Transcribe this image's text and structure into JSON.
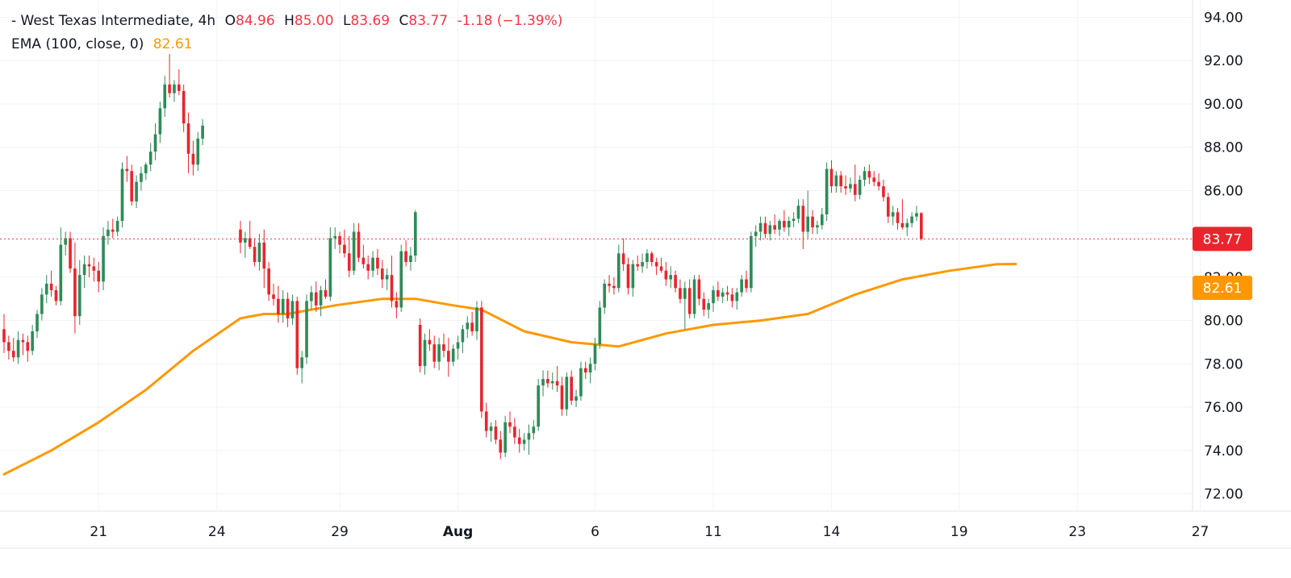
{
  "legend": {
    "symbol_line": "- West Texas Intermediate, 4h",
    "o_label": "O",
    "o_value": "84.96",
    "h_label": "H",
    "h_value": "85.00",
    "l_label": "L",
    "l_value": "83.69",
    "c_label": "C",
    "c_value": "83.77",
    "change": "-1.18 (−1.39%)",
    "ema_label": "EMA (100, close, 0)",
    "ema_value": "82.61"
  },
  "colors": {
    "up": "#26a69a",
    "up_body": "#2e8b57",
    "down": "#e8252d",
    "ema": "#ff9800",
    "grid": "#f0f3fa",
    "price_line": "#f23645"
  },
  "chart_data": {
    "type": "candlestick",
    "title": "West Texas Intermediate, 4h",
    "ylim": [
      71.2,
      94.8
    ],
    "y_ticks": [
      "72.00",
      "74.00",
      "76.00",
      "78.00",
      "80.00",
      "82.00",
      "84.00",
      "86.00",
      "88.00",
      "90.00",
      "92.00",
      "94.00"
    ],
    "x_ticks": [
      {
        "label": "21",
        "index": 20
      },
      {
        "label": "24",
        "index": 45
      },
      {
        "label": "29",
        "index": 71
      },
      {
        "label": "Aug",
        "index": 96
      },
      {
        "label": "6",
        "index": 125
      },
      {
        "label": "11",
        "index": 150
      },
      {
        "label": "14",
        "index": 175
      },
      {
        "label": "19",
        "index": 202
      },
      {
        "label": "23",
        "index": 227
      },
      {
        "label": "27",
        "index": 253
      }
    ],
    "last_price": {
      "value": "83.77",
      "numeric": 83.77
    },
    "ema_last": {
      "value": "82.61",
      "numeric": 82.61
    },
    "ohlc_points": [
      [
        0,
        79.6,
        80.3,
        78.5,
        79.0
      ],
      [
        1,
        79.0,
        79.3,
        78.2,
        78.6
      ],
      [
        2,
        78.6,
        79.2,
        78.1,
        78.3
      ],
      [
        3,
        78.3,
        79.5,
        78.0,
        79.1
      ],
      [
        4,
        79.1,
        79.4,
        78.4,
        79.0
      ],
      [
        5,
        79.0,
        79.3,
        78.1,
        78.6
      ],
      [
        6,
        78.6,
        79.8,
        78.4,
        79.5
      ],
      [
        7,
        79.5,
        80.5,
        79.2,
        80.3
      ],
      [
        8,
        80.3,
        81.5,
        80.0,
        81.2
      ],
      [
        9,
        81.2,
        82.1,
        80.8,
        81.7
      ],
      [
        10,
        81.7,
        82.3,
        81.1,
        81.4
      ],
      [
        11,
        81.4,
        81.6,
        80.7,
        80.9
      ],
      [
        12,
        80.9,
        84.3,
        80.7,
        83.5
      ],
      [
        13,
        83.5,
        84.1,
        83.0,
        83.8
      ],
      [
        14,
        83.8,
        84.1,
        82.2,
        82.4
      ],
      [
        15,
        82.4,
        83.6,
        79.4,
        80.2
      ],
      [
        16,
        80.2,
        82.8,
        79.8,
        82.1
      ],
      [
        17,
        82.1,
        83.0,
        81.5,
        82.6
      ],
      [
        18,
        82.6,
        83.0,
        82.0,
        82.5
      ],
      [
        19,
        82.5,
        82.9,
        81.8,
        82.3
      ],
      [
        20,
        82.3,
        82.7,
        81.3,
        81.8
      ],
      [
        21,
        81.8,
        84.3,
        81.4,
        83.9
      ],
      [
        22,
        83.9,
        84.6,
        83.5,
        84.2
      ],
      [
        23,
        84.2,
        84.7,
        83.8,
        84.1
      ],
      [
        24,
        84.1,
        84.8,
        83.9,
        84.6
      ],
      [
        25,
        84.6,
        87.3,
        84.3,
        87.0
      ],
      [
        26,
        87.0,
        87.6,
        86.4,
        86.9
      ],
      [
        27,
        86.9,
        87.2,
        85.3,
        85.5
      ],
      [
        28,
        85.5,
        86.7,
        85.2,
        86.4
      ],
      [
        29,
        86.4,
        87.1,
        86.0,
        86.8
      ],
      [
        30,
        86.8,
        87.3,
        86.5,
        87.2
      ],
      [
        31,
        87.2,
        88.2,
        86.9,
        87.8
      ],
      [
        32,
        87.8,
        89.1,
        87.4,
        88.6
      ],
      [
        33,
        88.6,
        90.1,
        88.2,
        89.8
      ],
      [
        34,
        89.8,
        91.3,
        89.4,
        90.9
      ],
      [
        35,
        90.9,
        92.3,
        90.3,
        90.5
      ],
      [
        36,
        90.5,
        91.1,
        90.1,
        90.9
      ],
      [
        37,
        90.9,
        91.6,
        90.4,
        90.6
      ],
      [
        38,
        90.6,
        90.9,
        88.7,
        89.1
      ],
      [
        39,
        89.1,
        89.6,
        86.8,
        87.7
      ],
      [
        40,
        87.7,
        88.3,
        86.7,
        87.2
      ],
      [
        41,
        87.2,
        88.7,
        86.9,
        88.4
      ],
      [
        42,
        88.4,
        89.3,
        88.1,
        89.0
      ],
      [
        50,
        84.2,
        84.6,
        83.1,
        83.6
      ],
      [
        51,
        83.6,
        84.1,
        82.9,
        83.8
      ],
      [
        52,
        83.8,
        84.6,
        83.3,
        83.4
      ],
      [
        53,
        83.4,
        83.8,
        82.5,
        82.7
      ],
      [
        54,
        82.7,
        84.0,
        82.3,
        83.6
      ],
      [
        55,
        83.6,
        84.2,
        81.5,
        82.4
      ],
      [
        56,
        82.4,
        82.7,
        80.9,
        81.2
      ],
      [
        57,
        81.2,
        81.7,
        80.7,
        81.0
      ],
      [
        58,
        81.0,
        81.6,
        79.9,
        80.3
      ],
      [
        59,
        80.3,
        81.4,
        79.9,
        81.0
      ],
      [
        60,
        81.0,
        81.3,
        79.7,
        80.1
      ],
      [
        61,
        80.1,
        81.2,
        79.8,
        80.9
      ],
      [
        62,
        80.9,
        81.1,
        77.5,
        77.8
      ],
      [
        63,
        77.8,
        78.6,
        77.1,
        78.3
      ],
      [
        64,
        78.3,
        81.2,
        78.0,
        80.9
      ],
      [
        65,
        80.9,
        81.6,
        80.5,
        81.3
      ],
      [
        66,
        81.3,
        81.8,
        80.4,
        80.7
      ],
      [
        67,
        80.7,
        81.6,
        80.2,
        81.4
      ],
      [
        68,
        81.4,
        81.9,
        81.0,
        81.1
      ],
      [
        69,
        81.1,
        84.3,
        80.9,
        83.8
      ],
      [
        70,
        83.8,
        84.3,
        83.3,
        83.9
      ],
      [
        71,
        83.9,
        84.1,
        83.1,
        83.5
      ],
      [
        72,
        83.5,
        84.2,
        82.9,
        83.1
      ],
      [
        73,
        83.1,
        83.9,
        82.0,
        82.3
      ],
      [
        74,
        82.3,
        84.5,
        82.1,
        84.1
      ],
      [
        75,
        84.1,
        84.5,
        82.7,
        82.9
      ],
      [
        76,
        82.9,
        83.5,
        82.4,
        82.6
      ],
      [
        77,
        82.6,
        83.0,
        81.9,
        82.3
      ],
      [
        78,
        82.3,
        83.2,
        82.0,
        82.9
      ],
      [
        79,
        82.9,
        83.3,
        82.1,
        82.4
      ],
      [
        80,
        82.4,
        82.8,
        81.5,
        81.9
      ],
      [
        81,
        81.9,
        82.4,
        81.4,
        82.1
      ],
      [
        82,
        82.1,
        83.0,
        80.6,
        80.9
      ],
      [
        83,
        80.9,
        81.3,
        80.1,
        80.6
      ],
      [
        84,
        80.6,
        83.5,
        80.4,
        83.2
      ],
      [
        85,
        83.2,
        83.7,
        82.5,
        82.7
      ],
      [
        86,
        82.7,
        83.4,
        82.3,
        83.0
      ],
      [
        87,
        83.0,
        85.1,
        82.7,
        85.0
      ],
      [
        88,
        79.8,
        80.1,
        77.6,
        77.9
      ],
      [
        89,
        77.9,
        79.4,
        77.5,
        79.1
      ],
      [
        90,
        79.1,
        79.6,
        78.6,
        78.9
      ],
      [
        91,
        78.9,
        79.3,
        77.8,
        78.1
      ],
      [
        92,
        78.1,
        79.2,
        77.7,
        78.9
      ],
      [
        93,
        78.9,
        79.4,
        78.3,
        78.6
      ],
      [
        94,
        78.6,
        79.2,
        77.4,
        78.1
      ],
      [
        95,
        78.1,
        78.9,
        77.9,
        78.7
      ],
      [
        96,
        78.7,
        79.3,
        78.2,
        79.0
      ],
      [
        97,
        79.0,
        79.8,
        78.5,
        79.6
      ],
      [
        98,
        79.6,
        80.2,
        79.2,
        79.9
      ],
      [
        99,
        79.9,
        80.4,
        79.3,
        79.5
      ],
      [
        100,
        79.5,
        80.9,
        79.1,
        80.6
      ],
      [
        101,
        80.6,
        80.9,
        75.5,
        75.8
      ],
      [
        102,
        75.8,
        76.2,
        74.6,
        74.9
      ],
      [
        103,
        74.9,
        75.3,
        74.4,
        75.1
      ],
      [
        104,
        75.1,
        75.4,
        74.3,
        74.5
      ],
      [
        105,
        74.5,
        74.9,
        73.6,
        73.9
      ],
      [
        106,
        73.9,
        75.6,
        73.7,
        75.3
      ],
      [
        107,
        75.3,
        75.8,
        74.8,
        75.1
      ],
      [
        108,
        75.1,
        75.5,
        74.3,
        74.6
      ],
      [
        109,
        74.6,
        75.0,
        73.9,
        74.3
      ],
      [
        110,
        74.3,
        74.8,
        74.0,
        74.5
      ],
      [
        111,
        74.5,
        75.2,
        73.8,
        74.8
      ],
      [
        112,
        74.8,
        75.4,
        74.5,
        75.1
      ],
      [
        113,
        75.1,
        77.3,
        74.9,
        77.0
      ],
      [
        114,
        77.0,
        77.7,
        76.5,
        77.3
      ],
      [
        115,
        77.3,
        77.7,
        76.9,
        77.1
      ],
      [
        116,
        77.1,
        77.6,
        76.8,
        77.2
      ],
      [
        117,
        77.2,
        77.9,
        76.7,
        77.0
      ],
      [
        118,
        77.0,
        77.4,
        75.6,
        75.9
      ],
      [
        119,
        75.9,
        77.6,
        75.6,
        77.4
      ],
      [
        120,
        77.4,
        77.7,
        76.1,
        76.3
      ],
      [
        121,
        76.3,
        76.8,
        76.0,
        76.5
      ],
      [
        122,
        76.5,
        78.1,
        76.3,
        77.8
      ],
      [
        123,
        77.8,
        78.1,
        77.3,
        77.6
      ],
      [
        124,
        77.6,
        78.3,
        77.1,
        78.0
      ],
      [
        125,
        78.0,
        79.2,
        77.7,
        78.9
      ],
      [
        126,
        78.9,
        80.9,
        78.7,
        80.6
      ],
      [
        127,
        80.6,
        81.9,
        80.3,
        81.7
      ],
      [
        128,
        81.7,
        82.1,
        81.3,
        81.6
      ],
      [
        129,
        81.6,
        82.0,
        81.2,
        81.5
      ],
      [
        130,
        81.5,
        83.5,
        81.3,
        83.1
      ],
      [
        131,
        83.1,
        83.8,
        82.3,
        82.6
      ],
      [
        132,
        82.6,
        82.9,
        81.2,
        81.5
      ],
      [
        133,
        81.5,
        82.8,
        81.1,
        82.6
      ],
      [
        134,
        82.6,
        83.0,
        82.3,
        82.5
      ],
      [
        135,
        82.5,
        83.1,
        82.2,
        82.7
      ],
      [
        136,
        82.7,
        83.3,
        82.4,
        83.1
      ],
      [
        137,
        83.1,
        83.2,
        82.5,
        82.7
      ],
      [
        138,
        82.7,
        82.9,
        82.1,
        82.5
      ],
      [
        139,
        82.5,
        82.9,
        82.2,
        82.3
      ],
      [
        140,
        82.3,
        82.7,
        81.6,
        81.9
      ],
      [
        141,
        81.9,
        82.5,
        81.5,
        82.1
      ],
      [
        142,
        82.1,
        82.3,
        81.3,
        81.5
      ],
      [
        143,
        81.5,
        81.9,
        80.8,
        81.0
      ],
      [
        144,
        81.0,
        81.8,
        79.6,
        81.5
      ],
      [
        145,
        81.5,
        81.9,
        80.1,
        80.3
      ],
      [
        146,
        80.3,
        82.1,
        80.1,
        81.9
      ],
      [
        147,
        81.9,
        82.1,
        80.7,
        81.0
      ],
      [
        148,
        81.0,
        81.3,
        80.2,
        80.5
      ],
      [
        149,
        80.5,
        81.0,
        80.1,
        80.8
      ],
      [
        150,
        80.8,
        81.6,
        80.4,
        81.4
      ],
      [
        151,
        81.4,
        81.8,
        80.9,
        81.1
      ],
      [
        152,
        81.1,
        81.5,
        80.8,
        81.3
      ],
      [
        153,
        81.3,
        81.6,
        80.9,
        81.2
      ],
      [
        154,
        81.2,
        81.5,
        80.6,
        80.9
      ],
      [
        155,
        80.9,
        81.5,
        80.5,
        81.3
      ],
      [
        156,
        81.3,
        82.1,
        81.1,
        81.9
      ],
      [
        157,
        81.9,
        82.3,
        81.3,
        81.5
      ],
      [
        158,
        81.5,
        84.1,
        81.3,
        83.9
      ],
      [
        159,
        83.9,
        84.4,
        83.4,
        84.1
      ],
      [
        160,
        84.1,
        84.8,
        83.7,
        84.5
      ],
      [
        161,
        84.5,
        84.8,
        83.8,
        84.0
      ],
      [
        162,
        84.0,
        84.6,
        83.7,
        84.4
      ],
      [
        163,
        84.4,
        84.9,
        84.0,
        84.2
      ],
      [
        164,
        84.2,
        84.7,
        83.9,
        84.6
      ],
      [
        165,
        84.6,
        85.1,
        84.1,
        84.3
      ],
      [
        166,
        84.3,
        84.8,
        83.9,
        84.6
      ],
      [
        167,
        84.6,
        85.0,
        84.3,
        84.7
      ],
      [
        168,
        84.7,
        85.6,
        84.5,
        85.3
      ],
      [
        169,
        85.3,
        85.6,
        83.3,
        84.1
      ],
      [
        170,
        84.1,
        86.0,
        83.8,
        84.8
      ],
      [
        171,
        84.8,
        85.1,
        84.0,
        84.3
      ],
      [
        172,
        84.3,
        84.6,
        84.0,
        84.4
      ],
      [
        173,
        84.4,
        85.2,
        84.2,
        84.9
      ],
      [
        174,
        84.9,
        87.3,
        84.6,
        87.0
      ],
      [
        175,
        87.0,
        87.4,
        85.9,
        86.2
      ],
      [
        176,
        86.2,
        86.9,
        85.9,
        86.7
      ],
      [
        177,
        86.7,
        86.9,
        85.9,
        86.2
      ],
      [
        178,
        86.2,
        86.7,
        85.8,
        86.1
      ],
      [
        179,
        86.1,
        86.6,
        85.9,
        86.3
      ],
      [
        180,
        86.3,
        87.2,
        85.5,
        85.8
      ],
      [
        181,
        85.8,
        86.7,
        85.6,
        86.5
      ],
      [
        182,
        86.5,
        87.1,
        86.2,
        86.9
      ],
      [
        183,
        86.9,
        87.2,
        86.3,
        86.6
      ],
      [
        184,
        86.6,
        86.9,
        86.2,
        86.4
      ],
      [
        185,
        86.4,
        86.8,
        86.0,
        86.2
      ],
      [
        186,
        86.2,
        86.5,
        85.5,
        85.7
      ],
      [
        187,
        85.7,
        85.9,
        84.5,
        84.8
      ],
      [
        188,
        84.8,
        85.3,
        84.4,
        85.0
      ],
      [
        189,
        85.0,
        85.2,
        84.2,
        84.5
      ],
      [
        190,
        84.5,
        85.6,
        84.2,
        84.3
      ],
      [
        191,
        84.3,
        84.7,
        83.9,
        84.5
      ],
      [
        192,
        84.5,
        85.0,
        84.3,
        84.8
      ],
      [
        193,
        84.8,
        85.3,
        84.6,
        84.96
      ],
      [
        194,
        84.96,
        85.0,
        83.69,
        83.77
      ]
    ],
    "ema_points": [
      [
        0,
        72.9
      ],
      [
        10,
        74.0
      ],
      [
        20,
        75.3
      ],
      [
        30,
        76.8
      ],
      [
        40,
        78.6
      ],
      [
        50,
        80.1
      ],
      [
        55,
        80.3
      ],
      [
        60,
        80.3
      ],
      [
        65,
        80.5
      ],
      [
        70,
        80.7
      ],
      [
        80,
        81.0
      ],
      [
        87,
        81.0
      ],
      [
        95,
        80.7
      ],
      [
        101,
        80.5
      ],
      [
        110,
        79.5
      ],
      [
        120,
        79.0
      ],
      [
        130,
        78.8
      ],
      [
        140,
        79.4
      ],
      [
        150,
        79.8
      ],
      [
        160,
        80.0
      ],
      [
        170,
        80.3
      ],
      [
        180,
        81.2
      ],
      [
        190,
        81.9
      ],
      [
        200,
        82.3
      ],
      [
        210,
        82.6
      ],
      [
        214,
        82.61
      ]
    ],
    "x_index_max": 227
  }
}
